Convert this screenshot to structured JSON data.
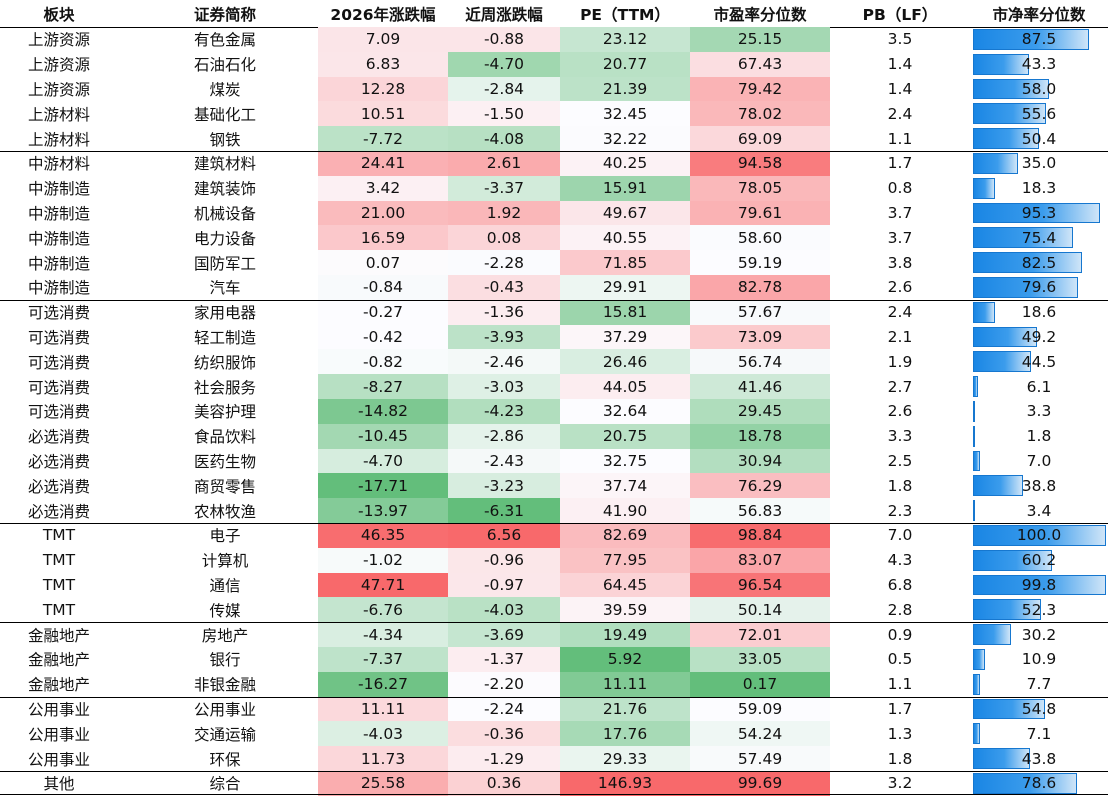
{
  "headers": [
    "板块",
    "证券简称",
    "2026年涨跌幅",
    "近周涨跌幅",
    "PE（TTM）",
    "市盈率分位数",
    "PB（LF）",
    "市净率分位数"
  ],
  "chart_data": {
    "type": "table",
    "columns": [
      "板块",
      "证券简称",
      "2026年涨跌幅",
      "近周涨跌幅",
      "PE（TTM）",
      "市盈率分位数",
      "PB（LF）",
      "市净率分位数"
    ],
    "colors": {
      "positive": "#f8696b",
      "neutral": "#fcfcff",
      "negative": "#63be7b",
      "bar": "#1a86e4"
    },
    "group_breaks_after_row": [
      4,
      10,
      19,
      23,
      26,
      29
    ],
    "rows": [
      [
        "上游资源",
        "有色金属",
        "7.09",
        "-0.88",
        "23.12",
        "25.15",
        "3.5",
        "87.5"
      ],
      [
        "上游资源",
        "石油石化",
        "6.83",
        "-4.70",
        "20.77",
        "67.43",
        "1.4",
        "43.3"
      ],
      [
        "上游资源",
        "煤炭",
        "12.28",
        "-2.84",
        "21.39",
        "79.42",
        "1.4",
        "58.0"
      ],
      [
        "上游材料",
        "基础化工",
        "10.51",
        "-1.50",
        "32.45",
        "78.02",
        "2.4",
        "55.6"
      ],
      [
        "上游材料",
        "钢铁",
        "-7.72",
        "-4.08",
        "32.22",
        "69.09",
        "1.1",
        "50.4"
      ],
      [
        "中游材料",
        "建筑材料",
        "24.41",
        "2.61",
        "40.25",
        "94.58",
        "1.7",
        "35.0"
      ],
      [
        "中游制造",
        "建筑装饰",
        "3.42",
        "-3.37",
        "15.91",
        "78.05",
        "0.8",
        "18.3"
      ],
      [
        "中游制造",
        "机械设备",
        "21.00",
        "1.92",
        "49.67",
        "79.61",
        "3.7",
        "95.3"
      ],
      [
        "中游制造",
        "电力设备",
        "16.59",
        "0.08",
        "40.55",
        "58.60",
        "3.7",
        "75.4"
      ],
      [
        "中游制造",
        "国防军工",
        "0.07",
        "-2.28",
        "71.85",
        "59.19",
        "3.8",
        "82.5"
      ],
      [
        "中游制造",
        "汽车",
        "-0.84",
        "-0.43",
        "29.91",
        "82.78",
        "2.6",
        "79.6"
      ],
      [
        "可选消费",
        "家用电器",
        "-0.27",
        "-1.36",
        "15.81",
        "57.67",
        "2.4",
        "18.6"
      ],
      [
        "可选消费",
        "轻工制造",
        "-0.42",
        "-3.93",
        "37.29",
        "73.09",
        "2.1",
        "49.2"
      ],
      [
        "可选消费",
        "纺织服饰",
        "-0.82",
        "-2.46",
        "26.46",
        "56.74",
        "1.9",
        "44.5"
      ],
      [
        "可选消费",
        "社会服务",
        "-8.27",
        "-3.03",
        "44.05",
        "41.46",
        "2.7",
        "6.1"
      ],
      [
        "可选消费",
        "美容护理",
        "-14.82",
        "-4.23",
        "32.64",
        "29.45",
        "2.6",
        "3.3"
      ],
      [
        "必选消费",
        "食品饮料",
        "-10.45",
        "-2.86",
        "20.75",
        "18.78",
        "3.3",
        "1.8"
      ],
      [
        "必选消费",
        "医药生物",
        "-4.70",
        "-2.43",
        "32.75",
        "30.94",
        "2.5",
        "7.0"
      ],
      [
        "必选消费",
        "商贸零售",
        "-17.71",
        "-3.23",
        "37.74",
        "76.29",
        "1.8",
        "38.8"
      ],
      [
        "必选消费",
        "农林牧渔",
        "-13.97",
        "-6.31",
        "41.90",
        "56.83",
        "2.3",
        "3.4"
      ],
      [
        "TMT",
        "电子",
        "46.35",
        "6.56",
        "82.69",
        "98.84",
        "7.0",
        "100.0"
      ],
      [
        "TMT",
        "计算机",
        "-1.02",
        "-0.96",
        "77.95",
        "83.07",
        "4.3",
        "60.2"
      ],
      [
        "TMT",
        "通信",
        "47.71",
        "-0.97",
        "64.45",
        "96.54",
        "6.8",
        "99.8"
      ],
      [
        "TMT",
        "传媒",
        "-6.76",
        "-4.03",
        "39.59",
        "50.14",
        "2.8",
        "52.3"
      ],
      [
        "金融地产",
        "房地产",
        "-4.34",
        "-3.69",
        "19.49",
        "72.01",
        "0.9",
        "30.2"
      ],
      [
        "金融地产",
        "银行",
        "-7.37",
        "-1.37",
        "5.92",
        "33.05",
        "0.5",
        "10.9"
      ],
      [
        "金融地产",
        "非银金融",
        "-16.27",
        "-2.20",
        "11.11",
        "0.17",
        "1.1",
        "7.7"
      ],
      [
        "公用事业",
        "公用事业",
        "11.11",
        "-2.24",
        "21.76",
        "59.09",
        "1.7",
        "54.8"
      ],
      [
        "公用事业",
        "交通运输",
        "-4.03",
        "-0.36",
        "17.76",
        "54.24",
        "1.3",
        "7.1"
      ],
      [
        "公用事业",
        "环保",
        "11.73",
        "-1.29",
        "29.33",
        "57.49",
        "1.8",
        "43.8"
      ],
      [
        "其他",
        "综合",
        "25.58",
        "0.36",
        "146.93",
        "99.69",
        "3.2",
        "78.6"
      ]
    ]
  }
}
